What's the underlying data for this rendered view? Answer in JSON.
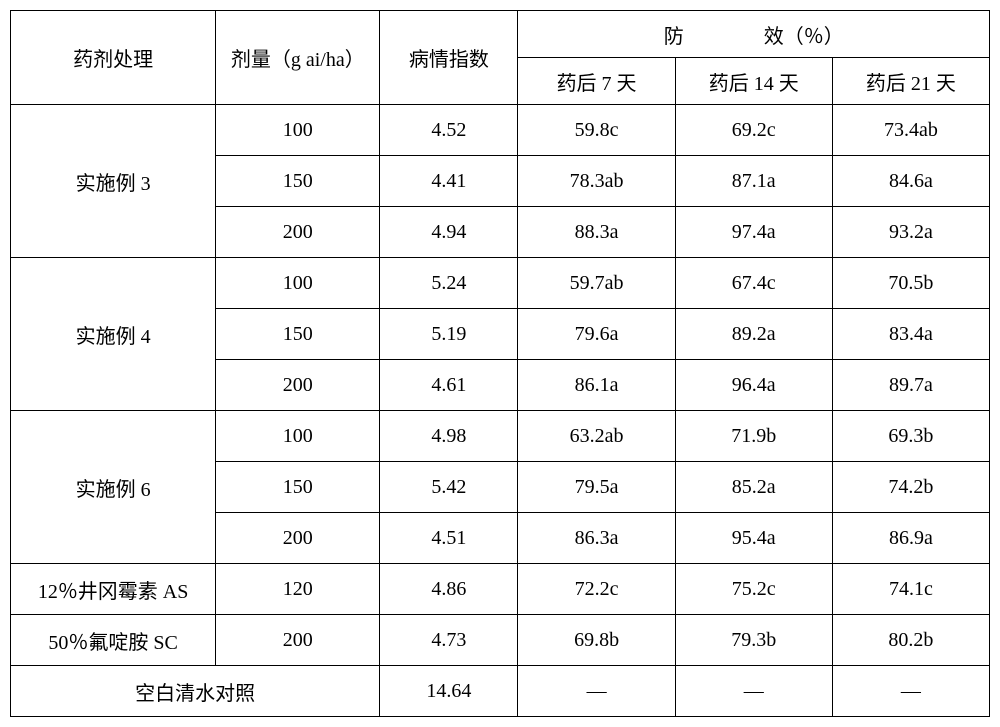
{
  "headers": {
    "treatment": "药剂处理",
    "dose": "剂量（g ai/ha）",
    "disease_index": "病情指数",
    "efficacy_group": "防　　　　效（％）",
    "day7": "药后 7 天",
    "day14": "药后 14 天",
    "day21": "药后 21 天"
  },
  "groups": [
    {
      "treatment": "实施例 3",
      "rows": [
        {
          "dose": "100",
          "index": "4.52",
          "d7": "59.8c",
          "d14": "69.2c",
          "d21": "73.4ab"
        },
        {
          "dose": "150",
          "index": "4.41",
          "d7": "78.3ab",
          "d14": "87.1a",
          "d21": "84.6a"
        },
        {
          "dose": "200",
          "index": "4.94",
          "d7": "88.3a",
          "d14": "97.4a",
          "d21": "93.2a"
        }
      ]
    },
    {
      "treatment": "实施例 4",
      "rows": [
        {
          "dose": "100",
          "index": "5.24",
          "d7": "59.7ab",
          "d14": "67.4c",
          "d21": "70.5b"
        },
        {
          "dose": "150",
          "index": "5.19",
          "d7": "79.6a",
          "d14": "89.2a",
          "d21": "83.4a"
        },
        {
          "dose": "200",
          "index": "4.61",
          "d7": "86.1a",
          "d14": "96.4a",
          "d21": "89.7a"
        }
      ]
    },
    {
      "treatment": "实施例 6",
      "rows": [
        {
          "dose": "100",
          "index": "4.98",
          "d7": "63.2ab",
          "d14": "71.9b",
          "d21": "69.3b"
        },
        {
          "dose": "150",
          "index": "5.42",
          "d7": "79.5a",
          "d14": "85.2a",
          "d21": "74.2b"
        },
        {
          "dose": "200",
          "index": "4.51",
          "d7": "86.3a",
          "d14": "95.4a",
          "d21": "86.9a"
        }
      ]
    }
  ],
  "singles": [
    {
      "treatment": "12％井冈霉素 AS",
      "dose": "120",
      "index": "4.86",
      "d7": "72.2c",
      "d14": "75.2c",
      "d21": "74.1c"
    },
    {
      "treatment": "50％氟啶胺 SC",
      "dose": "200",
      "index": "4.73",
      "d7": "69.8b",
      "d14": "79.3b",
      "d21": "80.2b"
    }
  ],
  "control": {
    "treatment": "空白清水对照",
    "index": "14.64",
    "d7": "—",
    "d14": "—",
    "d21": "—"
  }
}
